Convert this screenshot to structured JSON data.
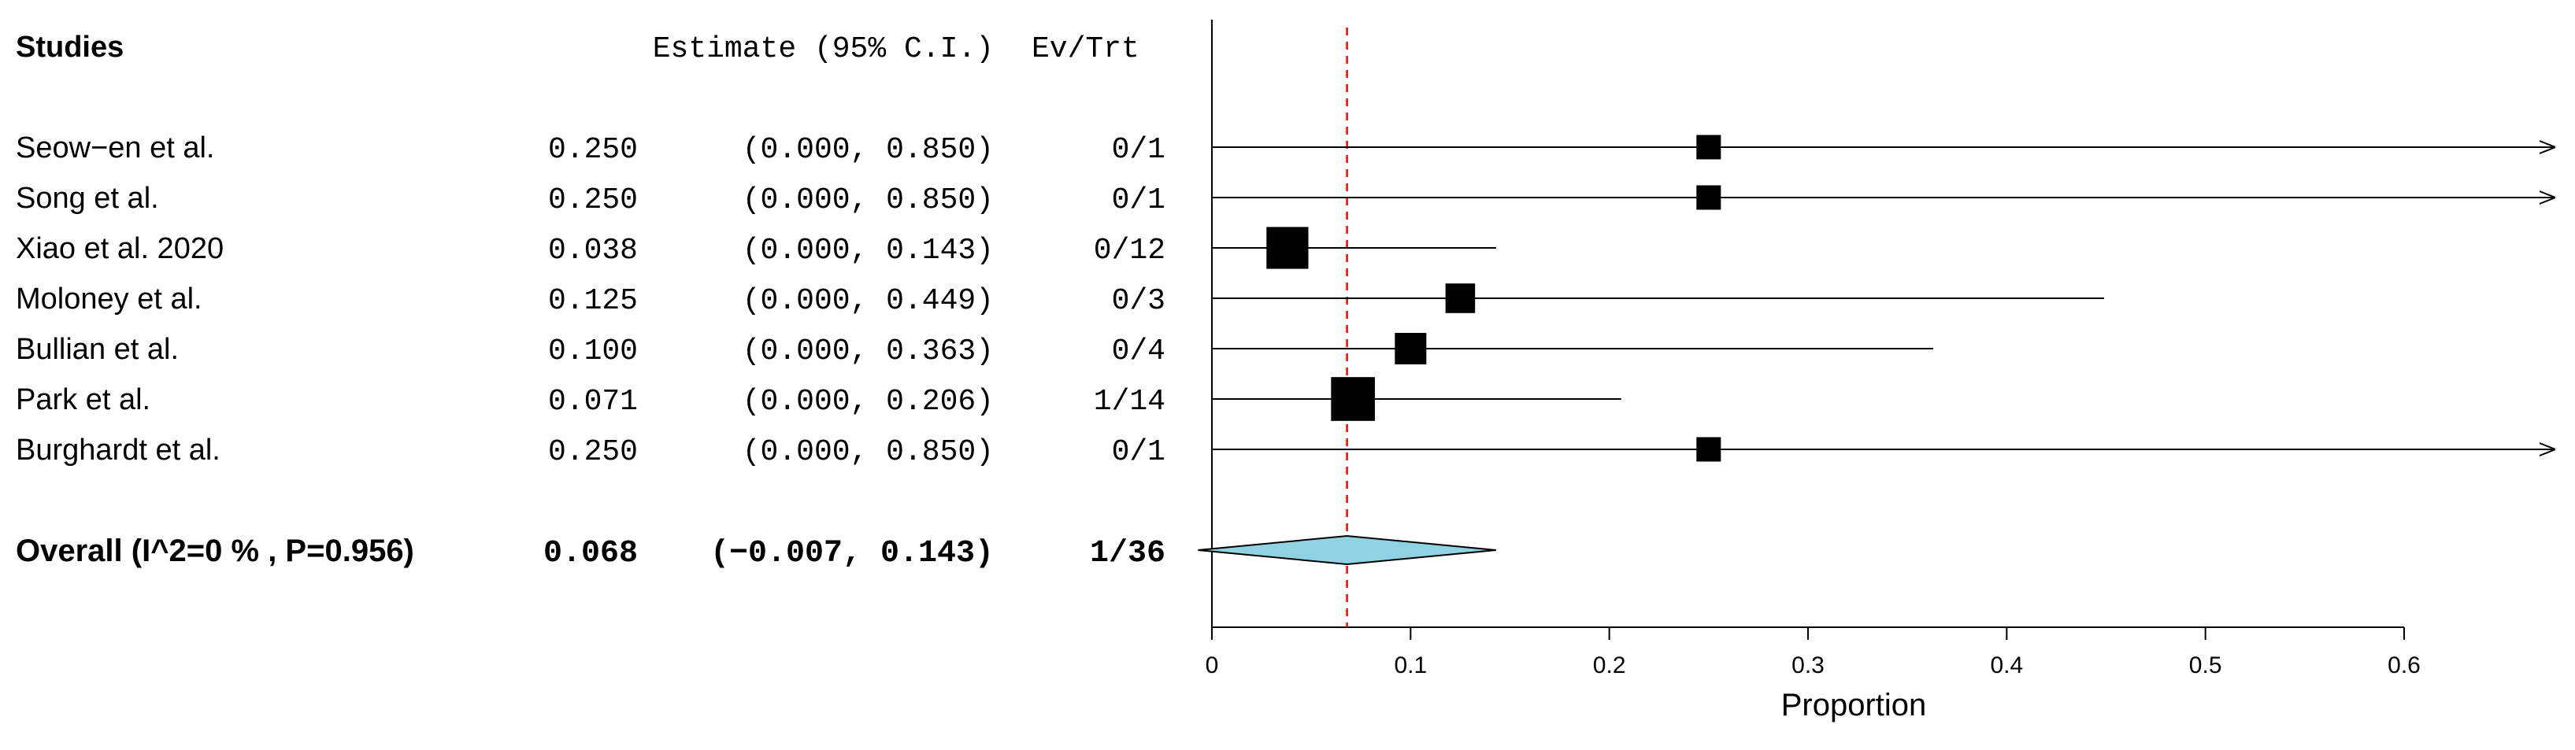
{
  "header": {
    "studies": "Studies",
    "estimate": "Estimate (95% C.I.)",
    "evtrt": "Ev/Trt"
  },
  "chart_data": {
    "type": "forest",
    "xlabel": "Proportion",
    "xlim": [
      0,
      0.6
    ],
    "xticks": [
      0,
      0.1,
      0.2,
      0.3,
      0.4,
      0.5,
      0.6
    ],
    "xtick_labels": [
      "0",
      "0.1",
      "0.2",
      "0.3",
      "0.4",
      "0.5",
      "0.6"
    ],
    "pooled_line": 0.068,
    "studies": [
      {
        "name": "Seow−en et al.",
        "est": 0.25,
        "lo": 0.0,
        "hi": 0.85,
        "est_text": "0.250",
        "ci_text": "(0.000, 0.850)",
        "evtrt": "0/1",
        "weight": 1
      },
      {
        "name": "Song et al.",
        "est": 0.25,
        "lo": 0.0,
        "hi": 0.85,
        "est_text": "0.250",
        "ci_text": "(0.000, 0.850)",
        "evtrt": "0/1",
        "weight": 1
      },
      {
        "name": "Xiao et al. 2020",
        "est": 0.038,
        "lo": 0.0,
        "hi": 0.143,
        "est_text": "0.038",
        "ci_text": "(0.000, 0.143)",
        "evtrt": "0/12",
        "weight": 12
      },
      {
        "name": "Moloney et al.",
        "est": 0.125,
        "lo": 0.0,
        "hi": 0.449,
        "est_text": "0.125",
        "ci_text": "(0.000, 0.449)",
        "evtrt": "0/3",
        "weight": 3
      },
      {
        "name": "Bullian et al.",
        "est": 0.1,
        "lo": 0.0,
        "hi": 0.363,
        "est_text": "0.100",
        "ci_text": "(0.000, 0.363)",
        "evtrt": "0/4",
        "weight": 4
      },
      {
        "name": "Park et al.",
        "est": 0.071,
        "lo": 0.0,
        "hi": 0.206,
        "est_text": "0.071",
        "ci_text": "(0.000, 0.206)",
        "evtrt": "1/14",
        "weight": 14
      },
      {
        "name": "Burghardt et al.",
        "est": 0.25,
        "lo": 0.0,
        "hi": 0.85,
        "est_text": "0.250",
        "ci_text": "(0.000, 0.850)",
        "evtrt": "0/1",
        "weight": 1
      }
    ],
    "overall": {
      "label": "Overall (I^2=0 % , P=0.956)",
      "est": 0.068,
      "lo": -0.007,
      "hi": 0.143,
      "est_text": "0.068",
      "ci_text": "(−0.007, 0.143)",
      "evtrt": "1/36"
    },
    "colors": {
      "diamond_fill": "#8fd3e2",
      "ref_line": "#ff0000",
      "marker": "#000000"
    }
  }
}
